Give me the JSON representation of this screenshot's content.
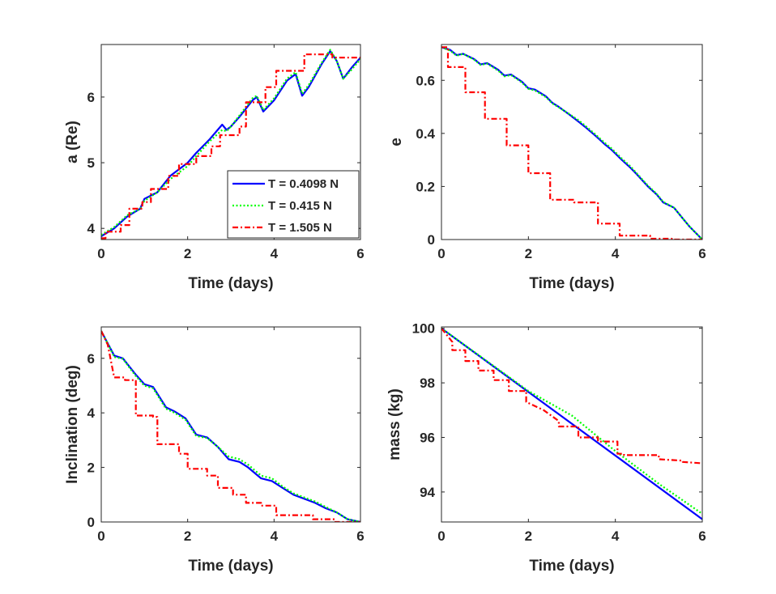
{
  "figure_title": "",
  "legend": {
    "entries": [
      {
        "label": "T = 0.4098 N",
        "color": "#0000ff",
        "style": "solid"
      },
      {
        "label": "T = 0.415 N",
        "color": "#00ff00",
        "style": "dotted"
      },
      {
        "label": "T = 1.505 N",
        "color": "#ff0000",
        "style": "dashdot"
      }
    ]
  },
  "chart_data": [
    {
      "type": "line",
      "id": "sma",
      "title": "",
      "xlabel": "Time (days)",
      "ylabel": "a (Re)",
      "xlim": [
        0,
        6
      ],
      "ylim": [
        3.83,
        6.8
      ],
      "xticks": [
        0,
        2,
        4,
        6
      ],
      "yticks": [
        4,
        5,
        6
      ],
      "xticklabels": [
        "0",
        "2",
        "4",
        "6"
      ],
      "yticklabels": [
        "4",
        "5",
        "6"
      ],
      "series": [
        {
          "name": "T = 0.4098 N",
          "style": "solid",
          "color": "#0000ff",
          "x": [
            0,
            0.3,
            0.6,
            0.9,
            1.0,
            1.3,
            1.6,
            2.0,
            2.2,
            2.5,
            2.8,
            2.9,
            3.0,
            3.2,
            3.5,
            3.6,
            3.75,
            4.0,
            4.3,
            4.5,
            4.65,
            4.8,
            5.1,
            5.3,
            5.45,
            5.6,
            5.8,
            6.0
          ],
          "y": [
            3.88,
            4.0,
            4.18,
            4.3,
            4.45,
            4.55,
            4.8,
            5.0,
            5.15,
            5.35,
            5.58,
            5.5,
            5.55,
            5.7,
            5.95,
            6.0,
            5.78,
            5.95,
            6.25,
            6.35,
            6.02,
            6.15,
            6.5,
            6.7,
            6.55,
            6.28,
            6.45,
            6.6
          ]
        },
        {
          "name": "T = 0.415 N",
          "style": "dotted",
          "color": "#00ff00",
          "x": [
            0,
            0.3,
            0.6,
            0.9,
            1.0,
            1.3,
            1.6,
            2.0,
            2.2,
            2.5,
            2.8,
            2.9,
            3.0,
            3.2,
            3.5,
            3.6,
            3.75,
            4.0,
            4.3,
            4.5,
            4.65,
            4.8,
            5.1,
            5.3,
            5.45,
            5.6,
            5.8,
            6.0
          ],
          "y": [
            3.9,
            4.02,
            4.2,
            4.3,
            4.42,
            4.55,
            4.75,
            4.95,
            5.1,
            5.32,
            5.5,
            5.48,
            5.55,
            5.72,
            5.98,
            6.02,
            5.8,
            5.98,
            6.28,
            6.38,
            6.05,
            6.18,
            6.52,
            6.72,
            6.55,
            6.28,
            6.42,
            6.58
          ]
        },
        {
          "name": "T = 1.505 N",
          "style": "dashdot",
          "color": "#ff0000",
          "x": [
            0,
            0.1,
            0.1,
            0.45,
            0.45,
            0.65,
            0.65,
            0.95,
            0.95,
            1.15,
            1.15,
            1.55,
            1.55,
            1.8,
            1.8,
            2.2,
            2.2,
            2.55,
            2.55,
            2.75,
            2.75,
            3.2,
            3.2,
            3.35,
            3.35,
            3.8,
            3.8,
            4.05,
            4.05,
            4.7,
            4.7,
            5.35,
            5.35,
            6.0
          ],
          "y": [
            3.85,
            3.85,
            3.95,
            3.95,
            4.05,
            4.05,
            4.3,
            4.3,
            4.4,
            4.4,
            4.6,
            4.6,
            4.8,
            4.8,
            4.98,
            4.98,
            5.1,
            5.1,
            5.25,
            5.25,
            5.42,
            5.42,
            5.55,
            5.55,
            5.92,
            5.92,
            6.15,
            6.15,
            6.4,
            6.4,
            6.65,
            6.65,
            6.6,
            6.6
          ]
        }
      ]
    },
    {
      "type": "line",
      "id": "ecc",
      "title": "",
      "xlabel": "Time (days)",
      "ylabel": "e",
      "xlim": [
        0,
        6
      ],
      "ylim": [
        0,
        0.735
      ],
      "xticks": [
        0,
        2,
        4,
        6
      ],
      "yticks": [
        0,
        0.2,
        0.4,
        0.6
      ],
      "xticklabels": [
        "0",
        "2",
        "4",
        "6"
      ],
      "yticklabels": [
        "0",
        "0.2",
        "0.4",
        "0.6"
      ],
      "series": [
        {
          "name": "T = 0.4098 N",
          "style": "solid",
          "color": "#0000ff",
          "x": [
            0,
            0.2,
            0.35,
            0.5,
            0.75,
            0.9,
            1.05,
            1.3,
            1.45,
            1.6,
            1.85,
            2.0,
            2.15,
            2.4,
            2.55,
            2.7,
            2.95,
            3.15,
            3.3,
            3.55,
            3.75,
            3.9,
            4.15,
            4.35,
            4.5,
            4.75,
            4.95,
            5.1,
            5.35,
            5.55,
            5.7,
            6.0
          ],
          "y": [
            0.725,
            0.715,
            0.695,
            0.7,
            0.68,
            0.66,
            0.665,
            0.64,
            0.618,
            0.622,
            0.595,
            0.57,
            0.565,
            0.54,
            0.515,
            0.5,
            0.47,
            0.445,
            0.425,
            0.39,
            0.36,
            0.34,
            0.3,
            0.27,
            0.245,
            0.2,
            0.17,
            0.14,
            0.12,
            0.08,
            0.05,
            0.0
          ]
        },
        {
          "name": "T = 0.415 N",
          "style": "dotted",
          "color": "#00ff00",
          "x": [
            0,
            0.2,
            0.35,
            0.5,
            0.75,
            0.9,
            1.05,
            1.3,
            1.45,
            1.6,
            1.85,
            2.0,
            2.15,
            2.4,
            2.55,
            2.7,
            2.95,
            3.15,
            3.3,
            3.55,
            3.75,
            3.9,
            4.15,
            4.35,
            4.5,
            4.75,
            4.95,
            5.1,
            5.35,
            5.55,
            5.7,
            6.0
          ],
          "y": [
            0.725,
            0.712,
            0.693,
            0.7,
            0.678,
            0.658,
            0.663,
            0.637,
            0.615,
            0.62,
            0.592,
            0.568,
            0.562,
            0.537,
            0.513,
            0.498,
            0.472,
            0.45,
            0.43,
            0.395,
            0.365,
            0.345,
            0.305,
            0.275,
            0.248,
            0.203,
            0.172,
            0.142,
            0.12,
            0.08,
            0.05,
            0.0
          ]
        },
        {
          "name": "T = 1.505 N",
          "style": "dashdot",
          "color": "#ff0000",
          "x": [
            0,
            0.15,
            0.15,
            0.55,
            0.55,
            1.0,
            1.0,
            1.5,
            1.5,
            2.0,
            2.0,
            2.5,
            2.5,
            3.05,
            3.05,
            3.6,
            3.6,
            4.1,
            4.1,
            4.8,
            4.8,
            5.3,
            5.3,
            6.0
          ],
          "y": [
            0.725,
            0.725,
            0.65,
            0.65,
            0.555,
            0.555,
            0.455,
            0.455,
            0.355,
            0.355,
            0.25,
            0.25,
            0.15,
            0.15,
            0.14,
            0.14,
            0.06,
            0.06,
            0.015,
            0.015,
            0.003,
            0.003,
            0.0,
            0.0
          ]
        }
      ]
    },
    {
      "type": "line",
      "id": "inc",
      "title": "",
      "xlabel": "Time (days)",
      "ylabel": "Inclination (deg)",
      "xlim": [
        0,
        6
      ],
      "ylim": [
        0,
        7.15
      ],
      "xticks": [
        0,
        2,
        4,
        6
      ],
      "yticks": [
        0,
        2,
        4,
        6
      ],
      "xticklabels": [
        "0",
        "2",
        "4",
        "6"
      ],
      "yticklabels": [
        "0",
        "2",
        "4",
        "6"
      ],
      "series": [
        {
          "name": "T = 0.4098 N",
          "style": "solid",
          "color": "#0000ff",
          "x": [
            0,
            0.1,
            0.3,
            0.5,
            0.8,
            1.0,
            1.2,
            1.5,
            1.7,
            1.95,
            2.2,
            2.45,
            2.7,
            2.95,
            3.2,
            3.4,
            3.7,
            3.95,
            4.2,
            4.45,
            4.7,
            4.95,
            5.2,
            5.45,
            5.7,
            6.0
          ],
          "y": [
            7.0,
            6.7,
            6.1,
            6.0,
            5.4,
            5.05,
            4.95,
            4.2,
            4.05,
            3.8,
            3.2,
            3.1,
            2.75,
            2.3,
            2.2,
            2.0,
            1.6,
            1.5,
            1.25,
            1.0,
            0.85,
            0.7,
            0.5,
            0.35,
            0.1,
            0.0
          ]
        },
        {
          "name": "T = 0.415 N",
          "style": "dotted",
          "color": "#00ff00",
          "x": [
            0,
            0.1,
            0.3,
            0.5,
            0.8,
            1.0,
            1.2,
            1.5,
            1.7,
            1.95,
            2.2,
            2.45,
            2.7,
            2.95,
            3.2,
            3.4,
            3.7,
            3.95,
            4.2,
            4.45,
            4.7,
            4.95,
            5.2,
            5.45,
            5.7,
            6.0
          ],
          "y": [
            7.0,
            6.7,
            6.05,
            5.98,
            5.35,
            5.0,
            4.9,
            4.15,
            4.0,
            3.75,
            3.15,
            3.08,
            2.75,
            2.4,
            2.3,
            2.1,
            1.7,
            1.6,
            1.3,
            1.05,
            0.9,
            0.75,
            0.55,
            0.35,
            0.1,
            0.0
          ]
        },
        {
          "name": "T = 1.505 N",
          "style": "dashdot",
          "color": "#ff0000",
          "x": [
            0,
            0.15,
            0.3,
            0.55,
            0.55,
            0.8,
            0.8,
            1.2,
            1.2,
            1.3,
            1.3,
            1.8,
            1.8,
            2.0,
            2.0,
            2.45,
            2.45,
            2.7,
            2.7,
            3.05,
            3.05,
            3.35,
            3.35,
            3.7,
            3.7,
            4.05,
            4.05,
            4.9,
            4.9,
            5.4,
            5.4,
            6.0
          ],
          "y": [
            7.0,
            6.5,
            5.3,
            5.3,
            5.2,
            5.2,
            3.9,
            3.9,
            3.85,
            3.85,
            2.85,
            2.85,
            2.5,
            2.5,
            1.95,
            1.95,
            1.7,
            1.7,
            1.25,
            1.25,
            1.0,
            1.0,
            0.7,
            0.7,
            0.6,
            0.6,
            0.25,
            0.25,
            0.1,
            0.1,
            0.0,
            0.0
          ]
        }
      ]
    },
    {
      "type": "line",
      "id": "mass",
      "title": "",
      "xlabel": "Time (days)",
      "ylabel": "mass (kg)",
      "xlim": [
        0,
        6
      ],
      "ylim": [
        92.9,
        100.05
      ],
      "xticks": [
        0,
        2,
        4,
        6
      ],
      "yticks": [
        94,
        96,
        98,
        100
      ],
      "xticklabels": [
        "0",
        "2",
        "4",
        "6"
      ],
      "yticklabels": [
        "94",
        "96",
        "98",
        "100"
      ],
      "series": [
        {
          "name": "T = 0.4098 N",
          "style": "solid",
          "color": "#0000ff",
          "x": [
            0,
            6.0
          ],
          "y": [
            100.0,
            93.0
          ]
        },
        {
          "name": "T = 0.415 N",
          "style": "dotted",
          "color": "#00ff00",
          "x": [
            0,
            2.0,
            3.0,
            4.0,
            5.0,
            6.0
          ],
          "y": [
            100.0,
            97.7,
            96.8,
            95.5,
            94.3,
            93.2
          ]
        },
        {
          "name": "T = 1.505 N",
          "style": "dashdot",
          "color": "#ff0000",
          "x": [
            0,
            0.25,
            0.25,
            0.55,
            0.55,
            0.85,
            0.85,
            1.2,
            1.2,
            1.55,
            1.55,
            1.95,
            1.95,
            2.35,
            2.35,
            2.7,
            2.7,
            3.15,
            3.15,
            3.6,
            3.6,
            4.05,
            4.05,
            4.2,
            4.2,
            5.0,
            5.0,
            5.55,
            5.55,
            6.0
          ],
          "y": [
            100.0,
            99.5,
            99.2,
            99.2,
            98.8,
            98.8,
            98.45,
            98.45,
            98.1,
            98.1,
            97.7,
            97.7,
            97.3,
            97.0,
            97.0,
            96.6,
            96.4,
            96.4,
            96.0,
            96.0,
            95.85,
            95.85,
            95.4,
            95.4,
            95.35,
            95.35,
            95.2,
            95.15,
            95.1,
            95.05
          ]
        }
      ]
    }
  ]
}
